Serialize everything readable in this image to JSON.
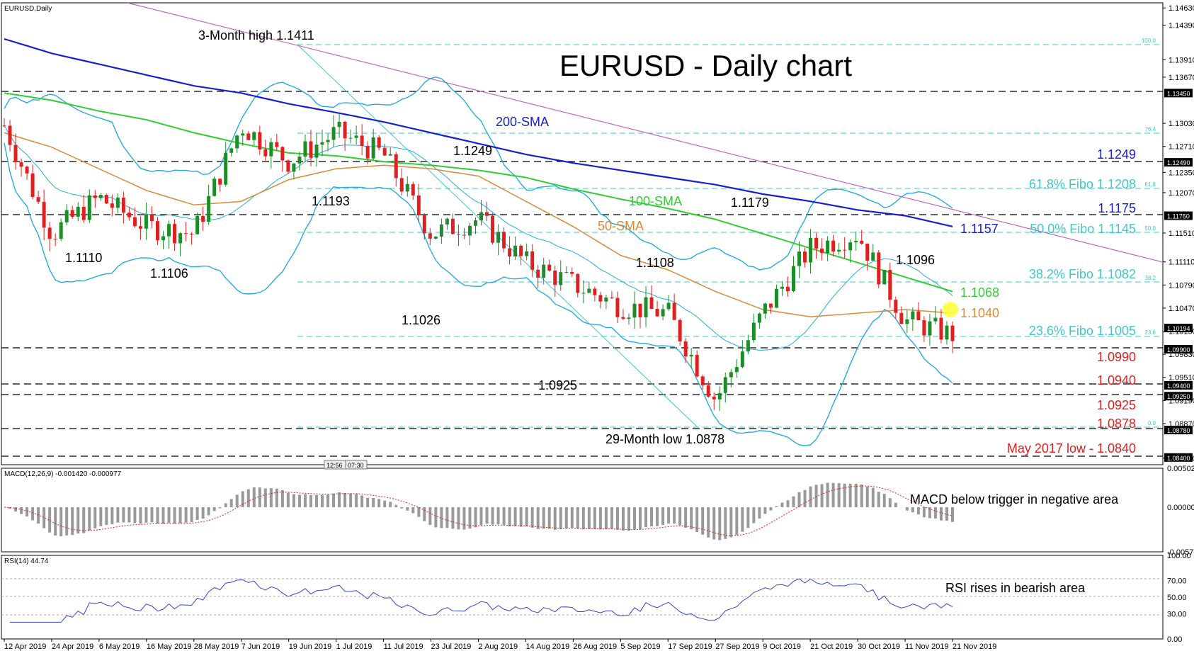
{
  "window": {
    "symbol_label": "EURUSD,Daily"
  },
  "title": "EURUSD - Daily chart",
  "colors": {
    "candle_up": "#1f8c2a",
    "candle_down": "#e02020",
    "sma200": "#1a20c8",
    "sma100": "#33cc33",
    "sma50": "#d98a3a",
    "bollinger": "#29a9e0",
    "fibo": "#3fc9c9",
    "trendline": "#c066c0",
    "support_text": "#e02020",
    "macd_hist": "#999999",
    "macd_signal": "#e02020",
    "rsi": "#3344cc"
  },
  "price_axis": {
    "ticks": [
      "1.14630",
      "1.14390",
      "1.13910",
      "1.13670",
      "1.13030",
      "1.12710",
      "1.12350",
      "1.12070",
      "1.11510",
      "1.11110",
      "1.10790",
      "1.10470",
      "1.10150",
      "1.09830",
      "1.09510",
      "1.09190",
      "1.08870",
      "1.08390"
    ],
    "tags": [
      "1.13450",
      "1.12490",
      "1.11750",
      "1.10194",
      "1.09900",
      "1.09400",
      "1.09250",
      "1.08780",
      "1.08400"
    ]
  },
  "macd_axis": {
    "ticks": [
      "0.005024",
      "0.000000",
      "-0.005763"
    ]
  },
  "rsi_axis": {
    "ticks": [
      "100.00",
      "70.00",
      "50.00",
      "30.00",
      "0.00"
    ]
  },
  "time_axis": {
    "labels": [
      "12 Apr 2019",
      "24 Apr 2019",
      "6 May 2019",
      "16 May 2019",
      "28 May 2019",
      "7 Jun 2019",
      "19 Jun 2019",
      "1 Jul 2019",
      "11 Jul 2019",
      "23 Jul 2019",
      "2 Aug 2019",
      "14 Aug 2019",
      "26 Aug 2019",
      "5 Sep 2019",
      "17 Sep 2019",
      "27 Sep 2019",
      "9 Oct 2019",
      "21 Oct 2019",
      "30 Oct 2019",
      "11 Nov 2019",
      "21 Nov 2019"
    ]
  },
  "time_markers": [
    "12:56",
    "07:30"
  ],
  "macd_panel": {
    "label": "MACD(12,26,9) -0.001420 -0.000977",
    "annotation": "MACD below trigger in negative area"
  },
  "rsi_panel": {
    "label": "RSI(14) 44.74",
    "annotation": "RSI rises in bearish area"
  },
  "fibo_tags": [
    "100.0",
    "76.4",
    "61.8",
    "50.0",
    "38.2",
    "23.6",
    "0.0"
  ],
  "annotations": {
    "high_3m": "3-Month high 1.1411",
    "low_29m": "29-Month low 1.0878",
    "sma200": "200-SMA",
    "sma100": "100-SMA",
    "sma50": "50-SMA",
    "l1249": "1.1249",
    "l1193": "1.1193",
    "l1110": "1.1110",
    "l1106": "1.1106",
    "l1026": "1.1026",
    "l1108": "1.1108",
    "l0925": "1.0925",
    "l1179": "1.1179",
    "l1096": "1.1096",
    "r1249": "1.1249",
    "fib618": "61.8% Fibo 1.1208",
    "r1175": "1.1175",
    "r1157": "1.1157",
    "fib50": "50.0% Fibo 1.1145",
    "fib382": "38.2% Fibo 1.1082",
    "r1068": "1.1068",
    "r1040": "1.1040",
    "fib236": "23.6% Fibo 1.1005",
    "s0990": "1.0990",
    "s0940": "1.0940",
    "s0925": "1.0925",
    "s0878": "1.0878",
    "may2017": "May 2017 low - 1.0840"
  },
  "chart_data": {
    "type": "line",
    "title": "EURUSD - Daily chart",
    "x": [
      "12 Apr 2019",
      "24 Apr 2019",
      "6 May 2019",
      "16 May 2019",
      "28 May 2019",
      "7 Jun 2019",
      "19 Jun 2019",
      "1 Jul 2019",
      "11 Jul 2019",
      "23 Jul 2019",
      "2 Aug 2019",
      "14 Aug 2019",
      "26 Aug 2019",
      "5 Sep 2019",
      "17 Sep 2019",
      "27 Sep 2019",
      "9 Oct 2019",
      "21 Oct 2019",
      "30 Oct 2019",
      "11 Nov 2019",
      "21 Nov 2019"
    ],
    "series": [
      {
        "name": "EURUSD",
        "values": [
          1.13,
          1.115,
          1.12,
          1.116,
          1.115,
          1.13,
          1.125,
          1.129,
          1.126,
          1.115,
          1.117,
          1.111,
          1.108,
          1.105,
          1.104,
          1.092,
          1.104,
          1.113,
          1.115,
          1.103,
          1.101
        ]
      },
      {
        "name": "200-SMA",
        "values": [
          1.142,
          1.14,
          1.1385,
          1.137,
          1.1355,
          1.1345,
          1.133,
          1.1318,
          1.1305,
          1.129,
          1.1275,
          1.126,
          1.1248,
          1.1238,
          1.1228,
          1.1218,
          1.1205,
          1.1195,
          1.1183,
          1.1175,
          1.116
        ]
      },
      {
        "name": "100-SMA",
        "values": [
          1.1345,
          1.1335,
          1.132,
          1.1308,
          1.129,
          1.1275,
          1.1262,
          1.1258,
          1.125,
          1.1245,
          1.1238,
          1.1228,
          1.1212,
          1.1198,
          1.1185,
          1.117,
          1.115,
          1.113,
          1.111,
          1.109,
          1.107
        ]
      },
      {
        "name": "50-SMA",
        "values": [
          1.129,
          1.127,
          1.124,
          1.121,
          1.119,
          1.1195,
          1.1225,
          1.124,
          1.1245,
          1.124,
          1.123,
          1.1195,
          1.116,
          1.112,
          1.11,
          1.107,
          1.1045,
          1.1035,
          1.104,
          1.1045,
          1.104
        ]
      }
    ],
    "ylim": [
      1.083,
      1.147
    ],
    "xlabel": "",
    "ylabel": "",
    "grid": false
  }
}
